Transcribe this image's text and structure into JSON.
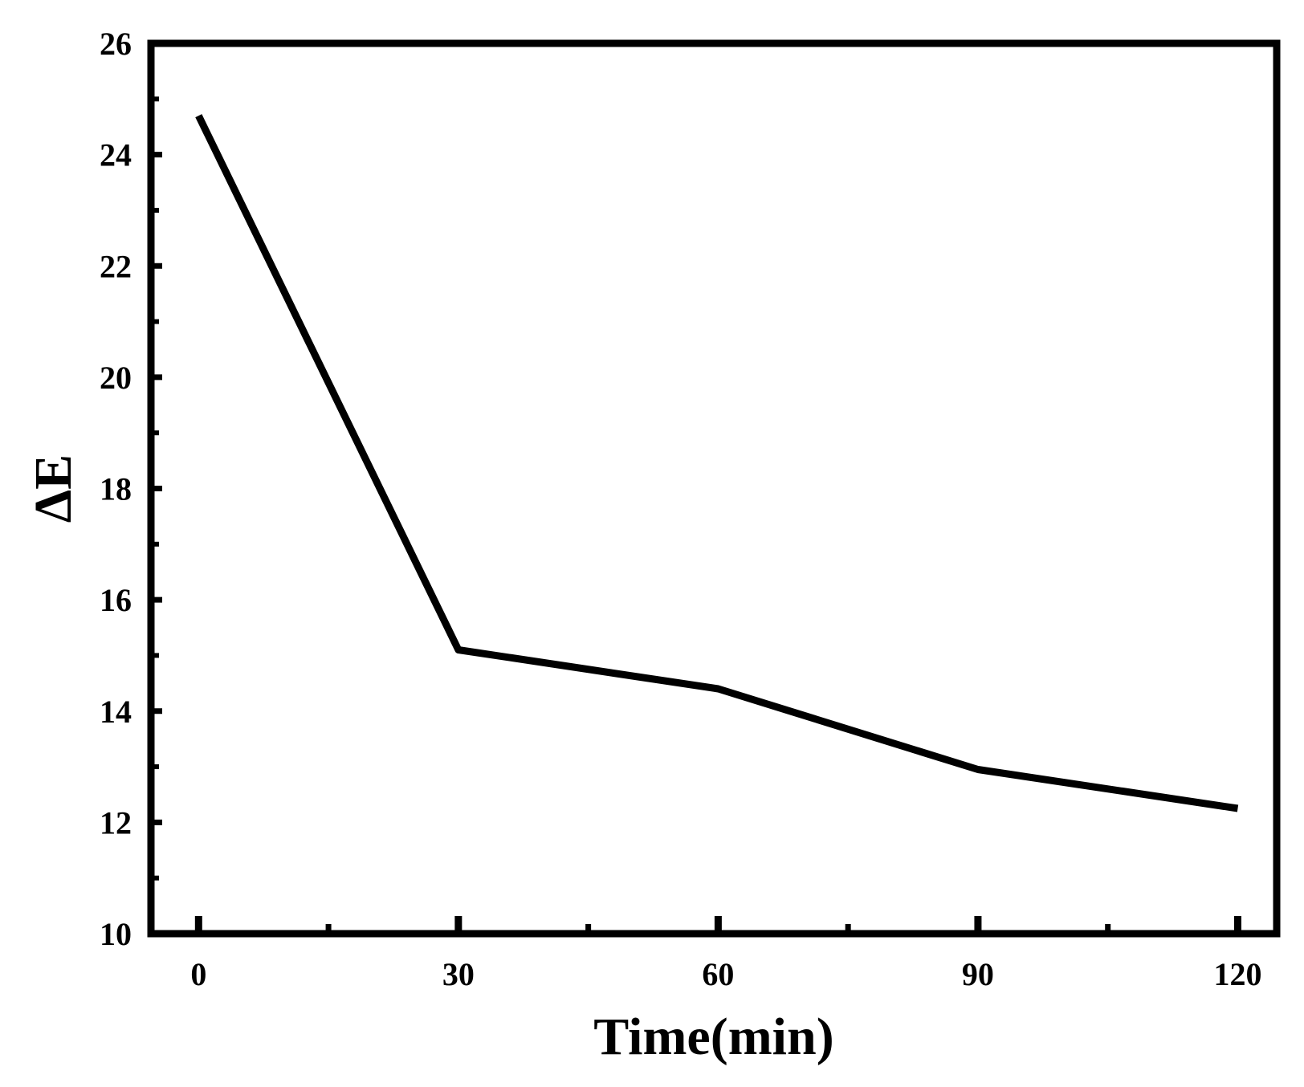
{
  "chart_data": {
    "type": "line",
    "title": "",
    "xlabel": "Time(min)",
    "ylabel": "ΔE",
    "xlim": [
      -5.5,
      124.5
    ],
    "ylim": [
      10,
      26
    ],
    "x_ticks": [
      0,
      30,
      60,
      90,
      120
    ],
    "x_tick_labels": [
      "0",
      "30",
      "60",
      "90",
      "120"
    ],
    "x_minor_ticks": [
      15,
      45,
      75,
      105
    ],
    "y_ticks": [
      10,
      12,
      14,
      16,
      18,
      20,
      22,
      24,
      26
    ],
    "y_tick_labels": [
      "10",
      "12",
      "14",
      "16",
      "18",
      "20",
      "22",
      "24",
      "26"
    ],
    "y_minor_ticks": [
      11,
      13,
      15,
      17,
      19,
      21,
      23,
      25
    ],
    "grid": false,
    "legend": "none",
    "series": [
      {
        "x": [
          0,
          30,
          60,
          90,
          120
        ],
        "values": [
          24.7,
          15.1,
          14.4,
          12.95,
          12.25
        ],
        "color": "#000000"
      }
    ]
  }
}
